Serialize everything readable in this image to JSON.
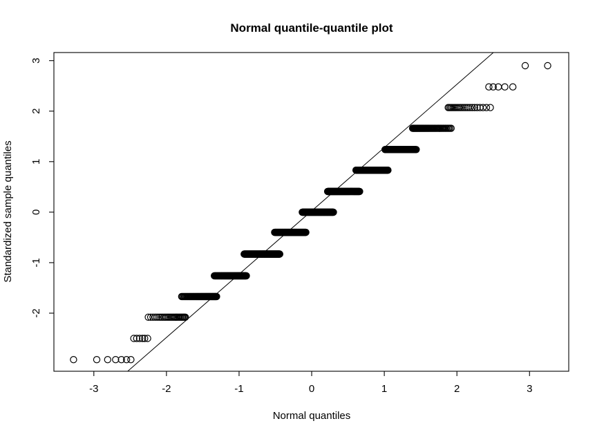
{
  "figure": {
    "background": "#ffffff",
    "ink": "#000000"
  },
  "chart_data": {
    "type": "scatter",
    "subtype": "normal-qq-plot",
    "title": "Normal quantile-quantile plot",
    "xlabel": "Normal quantiles",
    "ylabel": "Standardized sample quantiles",
    "xlim": [
      -3.55,
      3.54
    ],
    "ylim": [
      -3.15,
      3.16
    ],
    "x_ticks": [
      -3,
      -2,
      -1,
      0,
      1,
      2,
      3
    ],
    "y_ticks": [
      -2,
      -1,
      0,
      1,
      2,
      3
    ],
    "grid": false,
    "legend": false,
    "n_points": 1035,
    "point_style": {
      "shape": "open-circle",
      "radius_px": 4.6,
      "stroke": "#000000",
      "fill": "none"
    },
    "reference_line": {
      "slope": 1.253,
      "intercept": 0.025,
      "color": "#000000"
    },
    "bands": [
      {
        "sample_quantile": 2.9,
        "points_x": [
          2.94,
          3.25
        ]
      },
      {
        "sample_quantile": 2.48,
        "points_x": [
          2.44,
          2.5,
          2.57,
          2.66,
          2.77
        ]
      },
      {
        "sample_quantile": 2.07,
        "x_from": 1.88,
        "x_to": 2.46,
        "count": 22
      },
      {
        "sample_quantile": 1.66,
        "x_from": 1.39,
        "x_to": 1.92,
        "count": 52
      },
      {
        "sample_quantile": 1.24,
        "x_from": 1.01,
        "x_to": 1.44,
        "count": 76
      },
      {
        "sample_quantile": 0.83,
        "x_from": 0.61,
        "x_to": 1.05,
        "count": 115
      },
      {
        "sample_quantile": 0.41,
        "x_from": 0.22,
        "x_to": 0.66,
        "count": 139
      },
      {
        "sample_quantile": 0.0,
        "x_from": -0.13,
        "x_to": 0.3,
        "count": 149
      },
      {
        "sample_quantile": -0.4,
        "x_from": -0.51,
        "x_to": -0.08,
        "count": 146
      },
      {
        "sample_quantile": -0.83,
        "x_from": -0.93,
        "x_to": -0.44,
        "count": 142
      },
      {
        "sample_quantile": -1.26,
        "x_from": -1.34,
        "x_to": -0.9,
        "count": 91
      },
      {
        "sample_quantile": -1.67,
        "x_from": -1.79,
        "x_to": -1.31,
        "count": 56
      },
      {
        "sample_quantile": -2.08,
        "x_from": -2.25,
        "x_to": -1.74,
        "count": 27
      },
      {
        "sample_quantile": -2.5,
        "points_x": [
          -2.45,
          -2.41,
          -2.37,
          -2.33,
          -2.3,
          -2.26
        ]
      },
      {
        "sample_quantile": -2.92,
        "points_x": [
          -3.28,
          -2.96,
          -2.81,
          -2.7,
          -2.62,
          -2.55,
          -2.49
        ]
      }
    ]
  }
}
